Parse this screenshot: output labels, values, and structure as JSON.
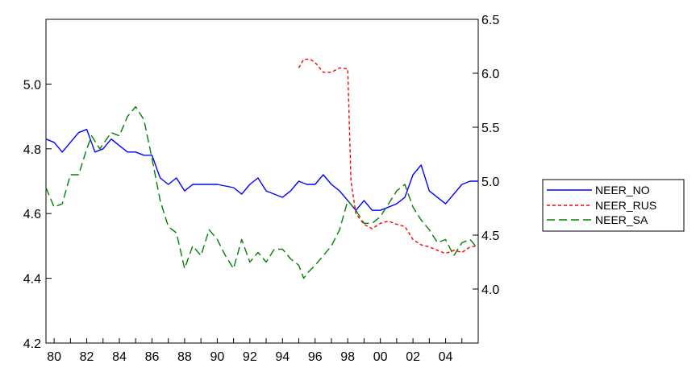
{
  "chart_data": {
    "type": "line",
    "title": "",
    "xlabel": "",
    "ylabel_left": "",
    "ylabel_right": "",
    "x_tick_labels": [
      "80",
      "82",
      "84",
      "86",
      "88",
      "90",
      "92",
      "94",
      "96",
      "98",
      "00",
      "02",
      "04"
    ],
    "x_tick_years": [
      1980,
      1982,
      1984,
      1986,
      1988,
      1990,
      1992,
      1994,
      1996,
      1998,
      2000,
      2002,
      2004
    ],
    "xlim": [
      1979.5,
      2006.0
    ],
    "left_axis": {
      "ylim": [
        4.2,
        5.2
      ],
      "ticks": [
        4.2,
        4.4,
        4.6,
        4.8,
        5.0
      ],
      "tick_labels": [
        "4.2",
        "4.4",
        "4.6",
        "4.8",
        "5.0"
      ]
    },
    "right_axis": {
      "ylim": [
        3.5,
        6.5
      ],
      "ticks": [
        4.0,
        4.5,
        5.0,
        5.5,
        6.0,
        6.5
      ],
      "tick_labels": [
        "4.0",
        "4.5",
        "5.0",
        "5.5",
        "6.0",
        "6.5"
      ]
    },
    "legend_position": "right",
    "series": [
      {
        "name": "NEER_NO",
        "axis": "left",
        "color": "#0000ff",
        "dash": "solid",
        "points": [
          [
            1979.5,
            4.83
          ],
          [
            1980.0,
            4.82
          ],
          [
            1980.5,
            4.79
          ],
          [
            1981.0,
            4.82
          ],
          [
            1981.5,
            4.85
          ],
          [
            1982.0,
            4.86
          ],
          [
            1982.5,
            4.79
          ],
          [
            1983.0,
            4.8
          ],
          [
            1983.5,
            4.83
          ],
          [
            1984.0,
            4.81
          ],
          [
            1984.5,
            4.79
          ],
          [
            1985.0,
            4.79
          ],
          [
            1985.5,
            4.78
          ],
          [
            1986.0,
            4.78
          ],
          [
            1986.5,
            4.71
          ],
          [
            1987.0,
            4.69
          ],
          [
            1987.5,
            4.71
          ],
          [
            1988.0,
            4.67
          ],
          [
            1988.5,
            4.69
          ],
          [
            1989.0,
            4.69
          ],
          [
            1990.0,
            4.69
          ],
          [
            1991.0,
            4.68
          ],
          [
            1991.5,
            4.66
          ],
          [
            1992.0,
            4.69
          ],
          [
            1992.5,
            4.71
          ],
          [
            1993.0,
            4.67
          ],
          [
            1993.5,
            4.66
          ],
          [
            1994.0,
            4.65
          ],
          [
            1994.5,
            4.67
          ],
          [
            1995.0,
            4.7
          ],
          [
            1995.5,
            4.69
          ],
          [
            1996.0,
            4.69
          ],
          [
            1996.5,
            4.72
          ],
          [
            1997.0,
            4.69
          ],
          [
            1997.5,
            4.67
          ],
          [
            1998.0,
            4.64
          ],
          [
            1998.5,
            4.61
          ],
          [
            1999.0,
            4.64
          ],
          [
            1999.5,
            4.61
          ],
          [
            2000.0,
            4.61
          ],
          [
            2000.5,
            4.62
          ],
          [
            2001.0,
            4.63
          ],
          [
            2001.5,
            4.65
          ],
          [
            2002.0,
            4.72
          ],
          [
            2002.5,
            4.75
          ],
          [
            2003.0,
            4.67
          ],
          [
            2003.5,
            4.65
          ],
          [
            2004.0,
            4.63
          ],
          [
            2004.5,
            4.66
          ],
          [
            2005.0,
            4.69
          ],
          [
            2005.5,
            4.7
          ],
          [
            2006.0,
            4.7
          ]
        ]
      },
      {
        "name": "NEER_RUS",
        "axis": "right",
        "color": "#ff0000",
        "dash": "short",
        "points": [
          [
            1995.0,
            6.05
          ],
          [
            1995.3,
            6.13
          ],
          [
            1995.7,
            6.13
          ],
          [
            1996.0,
            6.1
          ],
          [
            1996.5,
            6.01
          ],
          [
            1997.0,
            6.01
          ],
          [
            1997.5,
            6.05
          ],
          [
            1998.0,
            6.04
          ],
          [
            1998.2,
            5.0
          ],
          [
            1998.5,
            4.7
          ],
          [
            1999.0,
            4.6
          ],
          [
            1999.5,
            4.56
          ],
          [
            2000.0,
            4.61
          ],
          [
            2000.5,
            4.63
          ],
          [
            2001.0,
            4.6
          ],
          [
            2001.5,
            4.58
          ],
          [
            2002.0,
            4.46
          ],
          [
            2002.5,
            4.41
          ],
          [
            2003.0,
            4.39
          ],
          [
            2003.5,
            4.36
          ],
          [
            2004.0,
            4.33
          ],
          [
            2004.5,
            4.36
          ],
          [
            2005.0,
            4.34
          ],
          [
            2005.5,
            4.39
          ],
          [
            2006.0,
            4.4
          ]
        ]
      },
      {
        "name": "NEER_SA",
        "axis": "left",
        "color": "#008000",
        "dash": "long",
        "points": [
          [
            1979.5,
            4.68
          ],
          [
            1980.0,
            4.62
          ],
          [
            1980.5,
            4.63
          ],
          [
            1981.0,
            4.72
          ],
          [
            1981.5,
            4.72
          ],
          [
            1982.0,
            4.8
          ],
          [
            1982.3,
            4.84
          ],
          [
            1982.8,
            4.8
          ],
          [
            1983.5,
            4.85
          ],
          [
            1984.0,
            4.84
          ],
          [
            1984.5,
            4.9
          ],
          [
            1985.0,
            4.93
          ],
          [
            1985.5,
            4.89
          ],
          [
            1986.0,
            4.77
          ],
          [
            1986.5,
            4.64
          ],
          [
            1987.0,
            4.56
          ],
          [
            1987.5,
            4.54
          ],
          [
            1988.0,
            4.43
          ],
          [
            1988.5,
            4.5
          ],
          [
            1989.0,
            4.47
          ],
          [
            1989.5,
            4.55
          ],
          [
            1990.0,
            4.52
          ],
          [
            1990.5,
            4.47
          ],
          [
            1991.0,
            4.43
          ],
          [
            1991.5,
            4.52
          ],
          [
            1992.0,
            4.45
          ],
          [
            1992.5,
            4.48
          ],
          [
            1993.0,
            4.45
          ],
          [
            1993.5,
            4.49
          ],
          [
            1994.0,
            4.49
          ],
          [
            1994.5,
            4.46
          ],
          [
            1995.0,
            4.44
          ],
          [
            1995.3,
            4.4
          ],
          [
            1995.6,
            4.42
          ],
          [
            1996.0,
            4.44
          ],
          [
            1996.5,
            4.47
          ],
          [
            1997.0,
            4.5
          ],
          [
            1997.5,
            4.55
          ],
          [
            1998.0,
            4.64
          ],
          [
            1998.5,
            4.61
          ],
          [
            1999.0,
            4.57
          ],
          [
            1999.5,
            4.57
          ],
          [
            2000.0,
            4.59
          ],
          [
            2000.5,
            4.63
          ],
          [
            2001.0,
            4.67
          ],
          [
            2001.5,
            4.69
          ],
          [
            2002.0,
            4.62
          ],
          [
            2002.5,
            4.58
          ],
          [
            2003.0,
            4.55
          ],
          [
            2003.5,
            4.51
          ],
          [
            2004.0,
            4.52
          ],
          [
            2004.5,
            4.47
          ],
          [
            2005.0,
            4.51
          ],
          [
            2005.5,
            4.52
          ],
          [
            2006.0,
            4.49
          ]
        ]
      }
    ]
  }
}
